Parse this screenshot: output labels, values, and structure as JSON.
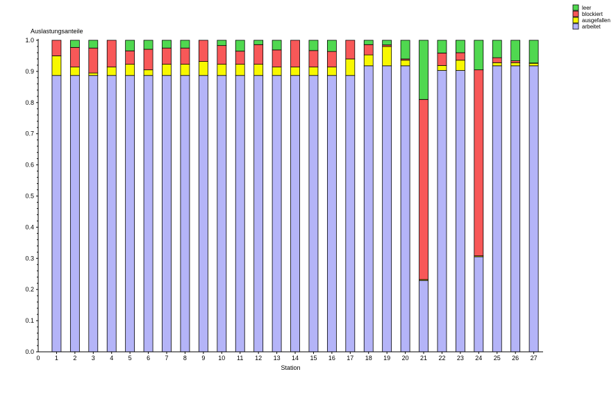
{
  "chart_data": {
    "type": "bar",
    "stacked": true,
    "ylabel": "Auslastungsanteile",
    "xlabel": "Station",
    "ylim": [
      0,
      1.0
    ],
    "yticks": [
      "0.0",
      "0.1",
      "0.2",
      "0.3",
      "0.4",
      "0.5",
      "0.6",
      "0.7",
      "0.8",
      "0.9",
      "1.0"
    ],
    "x_zero_label": "0",
    "categories": [
      "1",
      "2",
      "3",
      "4",
      "5",
      "6",
      "7",
      "8",
      "9",
      "10",
      "11",
      "12",
      "13",
      "14",
      "15",
      "16",
      "17",
      "18",
      "19",
      "20",
      "21",
      "22",
      "23",
      "24",
      "25",
      "26",
      "27"
    ],
    "legend_position": "top-right",
    "grid": false,
    "series": [
      {
        "name": "arbeitet",
        "color": "#b4b4f8",
        "values": [
          0.887,
          0.887,
          0.887,
          0.887,
          0.887,
          0.887,
          0.887,
          0.887,
          0.887,
          0.887,
          0.887,
          0.887,
          0.887,
          0.887,
          0.887,
          0.887,
          0.887,
          0.918,
          0.918,
          0.918,
          0.229,
          0.903,
          0.903,
          0.305,
          0.918,
          0.918,
          0.918
        ]
      },
      {
        "name": "ausgefallen",
        "color": "#f8f800",
        "values": [
          0.063,
          0.027,
          0.008,
          0.027,
          0.036,
          0.018,
          0.036,
          0.036,
          0.045,
          0.036,
          0.036,
          0.036,
          0.027,
          0.027,
          0.027,
          0.027,
          0.053,
          0.035,
          0.062,
          0.018,
          0.003,
          0.016,
          0.033,
          0.003,
          0.01,
          0.01,
          0.008
        ]
      },
      {
        "name": "blockiert",
        "color": "#f85858",
        "values": [
          0.05,
          0.063,
          0.08,
          0.086,
          0.043,
          0.066,
          0.052,
          0.052,
          0.068,
          0.06,
          0.042,
          0.063,
          0.055,
          0.086,
          0.053,
          0.05,
          0.06,
          0.033,
          0.005,
          0.004,
          0.578,
          0.04,
          0.024,
          0.597,
          0.016,
          0.006,
          0.001
        ]
      },
      {
        "name": "leer",
        "color": "#50d850",
        "values": [
          0.0,
          0.023,
          0.025,
          0.0,
          0.034,
          0.029,
          0.025,
          0.025,
          0.0,
          0.017,
          0.035,
          0.014,
          0.031,
          0.0,
          0.033,
          0.036,
          0.0,
          0.014,
          0.015,
          0.06,
          0.19,
          0.041,
          0.04,
          0.095,
          0.056,
          0.066,
          0.073
        ]
      }
    ]
  }
}
